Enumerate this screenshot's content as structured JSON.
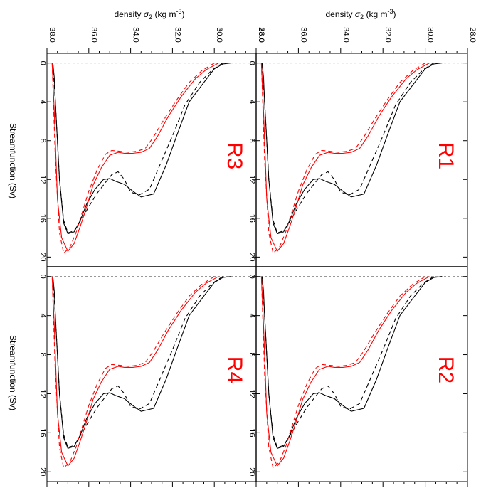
{
  "chart_data": {
    "type": "line",
    "orientation": "rotated-90-clockwise",
    "top_axis_label": {
      "prefix": "density ",
      "symbol": "σ",
      "subscript": "2",
      "unit_open": " (kg m",
      "unit_exp": "-3",
      "unit_close": ")"
    },
    "left_axis_label": "Streamfunction (Sv)",
    "density_ticks": [
      38.0,
      36.0,
      34.0,
      32.0,
      30.0,
      28.0
    ],
    "density_tick_labels": [
      "38.0",
      "36.0",
      "34.0",
      "32.0",
      "30.0",
      "28.0"
    ],
    "density_range": [
      38.0,
      28.0
    ],
    "streamfunction_ticks": [
      0,
      4,
      8,
      12,
      16,
      20
    ],
    "streamfunction_range": [
      -1,
      21
    ],
    "zero_line": true,
    "colors": {
      "black": "#000000",
      "red": "#ff0000",
      "label": "#ff0000",
      "zero": "#777777"
    },
    "panels": [
      {
        "label": "R3",
        "position": "top-left"
      },
      {
        "label": "R1",
        "position": "top-right"
      },
      {
        "label": "R4",
        "position": "bottom-left"
      },
      {
        "label": "R2",
        "position": "bottom-right"
      }
    ],
    "series": [
      {
        "color": "black",
        "dash": "solid",
        "x": [
          29.2,
          29.6,
          30.0,
          30.5,
          31.2,
          31.8,
          32.3,
          32.9,
          33.5,
          33.9,
          34.3,
          34.7,
          35.0,
          35.3,
          35.7,
          36.1,
          36.4,
          36.7,
          37.0,
          37.2,
          37.4,
          37.5,
          37.6,
          37.65,
          37.7,
          37.72
        ],
        "y": [
          0.0,
          0.1,
          0.6,
          2.0,
          4.0,
          7.5,
          10.5,
          13.5,
          13.8,
          13.2,
          12.5,
          12.2,
          11.9,
          12.0,
          13.0,
          14.5,
          16.2,
          17.4,
          17.6,
          16.5,
          12.0,
          8.0,
          4.0,
          1.5,
          0.4,
          0.0
        ]
      },
      {
        "color": "black",
        "dash": "dashed",
        "x": [
          29.6,
          30.1,
          30.7,
          31.4,
          32.0,
          32.6,
          33.1,
          33.6,
          34.0,
          34.3,
          34.6,
          34.9,
          35.2,
          35.6,
          36.0,
          36.4,
          36.7,
          37.0,
          37.2,
          37.4,
          37.6,
          37.72
        ],
        "y": [
          0.0,
          0.7,
          2.0,
          4.3,
          7.5,
          10.5,
          13.0,
          13.6,
          13.3,
          12.0,
          11.2,
          11.5,
          12.3,
          13.4,
          14.8,
          16.3,
          17.3,
          17.5,
          16.2,
          12.0,
          4.0,
          0.0
        ]
      },
      {
        "color": "red",
        "dash": "solid",
        "x": [
          29.8,
          30.4,
          30.9,
          31.6,
          32.2,
          32.7,
          33.1,
          33.5,
          33.9,
          34.3,
          34.6,
          35.0,
          35.4,
          35.8,
          36.1,
          36.4,
          36.7,
          37.0,
          37.3,
          37.5,
          37.65,
          37.75
        ],
        "y": [
          0.0,
          0.7,
          1.6,
          3.5,
          5.5,
          7.5,
          8.8,
          9.2,
          9.3,
          9.3,
          9.2,
          9.5,
          10.8,
          12.6,
          14.8,
          16.8,
          18.6,
          19.4,
          18.0,
          14.0,
          5.0,
          0.0
        ]
      },
      {
        "color": "red",
        "dash": "dashed",
        "x": [
          30.0,
          30.6,
          31.2,
          31.8,
          32.4,
          32.9,
          33.3,
          33.7,
          34.1,
          34.5,
          34.9,
          35.2,
          35.6,
          36.0,
          36.3,
          36.6,
          36.9,
          37.2,
          37.4,
          37.6,
          37.75
        ],
        "y": [
          0.0,
          0.8,
          2.0,
          3.8,
          5.8,
          7.6,
          8.8,
          9.1,
          9.2,
          9.1,
          9.0,
          9.4,
          11.0,
          13.2,
          15.3,
          17.4,
          19.0,
          19.6,
          17.5,
          10.0,
          0.0
        ]
      }
    ]
  }
}
